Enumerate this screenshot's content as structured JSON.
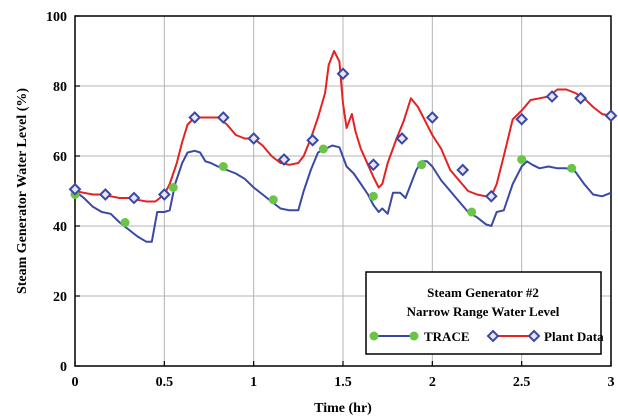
{
  "chart_data": {
    "type": "line",
    "title": "",
    "xlabel": "Time (hr)",
    "ylabel": "Steam Generator Water Level (%)",
    "xlim": [
      0,
      3
    ],
    "ylim": [
      0,
      100
    ],
    "xticks": [
      0,
      0.5,
      1,
      1.5,
      2,
      2.5,
      3
    ],
    "xtick_labels": [
      "0",
      "0.5",
      "1",
      "1.5",
      "2",
      "2.5",
      "3"
    ],
    "yticks": [
      0,
      20,
      40,
      60,
      80,
      100
    ],
    "ytick_labels": [
      "0",
      "20",
      "40",
      "60",
      "80",
      "100"
    ],
    "grid": true,
    "legend": {
      "position": "bottom-right",
      "title_lines": [
        "Steam Generator #2",
        "Narrow Range Water Level"
      ]
    },
    "series": [
      {
        "name": "TRACE",
        "line_color": "#3a4aa3",
        "marker_color": "#6ac545",
        "marker": "circle",
        "x": [
          0,
          0.05,
          0.1,
          0.15,
          0.2,
          0.25,
          0.3,
          0.35,
          0.4,
          0.43,
          0.46,
          0.5,
          0.53,
          0.56,
          0.6,
          0.63,
          0.67,
          0.7,
          0.73,
          0.76,
          0.8,
          0.85,
          0.9,
          0.95,
          1.0,
          1.05,
          1.1,
          1.15,
          1.2,
          1.25,
          1.28,
          1.32,
          1.36,
          1.4,
          1.44,
          1.48,
          1.52,
          1.56,
          1.6,
          1.64,
          1.67,
          1.7,
          1.72,
          1.75,
          1.78,
          1.82,
          1.85,
          1.88,
          1.91,
          1.94,
          1.97,
          2.0,
          2.05,
          2.1,
          2.15,
          2.2,
          2.25,
          2.3,
          2.33,
          2.36,
          2.4,
          2.45,
          2.48,
          2.5,
          2.53,
          2.56,
          2.6,
          2.65,
          2.7,
          2.75,
          2.8,
          2.85,
          2.9,
          2.95,
          3.0
        ],
        "y": [
          50,
          48,
          45.5,
          44,
          43.5,
          41,
          39,
          37,
          35.5,
          35.5,
          44,
          44,
          44.5,
          52,
          58,
          61,
          61.5,
          61,
          58.5,
          58,
          57,
          56,
          55,
          53.5,
          51,
          49,
          47,
          45,
          44.5,
          44.5,
          50,
          56,
          61,
          62,
          63,
          62.5,
          57,
          55,
          52,
          49,
          46,
          44,
          45,
          43.5,
          49.5,
          49.5,
          48,
          52,
          56,
          58.5,
          58.5,
          57,
          53,
          50,
          47,
          44,
          42.5,
          40.5,
          40,
          44,
          44.5,
          52,
          55,
          57,
          58.5,
          57.5,
          56.5,
          57,
          56.5,
          56.5,
          55.5,
          52,
          49,
          48.5,
          49.5
        ]
      },
      {
        "name": "Plant Data",
        "line_color": "#e52222",
        "marker_color": "#3a4aa3",
        "marker_fill": "#e8e4f4",
        "marker": "diamond",
        "x": [
          0,
          0.05,
          0.1,
          0.15,
          0.2,
          0.25,
          0.3,
          0.35,
          0.4,
          0.45,
          0.5,
          0.53,
          0.57,
          0.6,
          0.63,
          0.67,
          0.7,
          0.75,
          0.8,
          0.85,
          0.9,
          0.95,
          1.0,
          1.05,
          1.1,
          1.15,
          1.2,
          1.25,
          1.28,
          1.32,
          1.36,
          1.4,
          1.42,
          1.45,
          1.48,
          1.5,
          1.52,
          1.55,
          1.57,
          1.6,
          1.64,
          1.67,
          1.7,
          1.72,
          1.75,
          1.8,
          1.84,
          1.88,
          1.92,
          1.95,
          2.0,
          2.05,
          2.1,
          2.15,
          2.2,
          2.25,
          2.3,
          2.33,
          2.36,
          2.4,
          2.45,
          2.5,
          2.55,
          2.6,
          2.65,
          2.7,
          2.75,
          2.8,
          2.85,
          2.9,
          2.95,
          3.0
        ],
        "y": [
          50,
          49.5,
          49,
          49,
          48.5,
          48,
          48,
          47.5,
          47,
          47,
          49,
          52,
          58,
          64,
          69,
          71,
          71,
          71,
          71,
          69,
          66,
          65,
          65,
          63,
          60,
          58,
          57.5,
          58,
          60,
          65,
          71,
          78,
          86,
          90,
          87,
          75,
          68,
          72,
          67,
          62,
          57.5,
          54,
          51,
          52,
          58,
          65,
          70,
          76.5,
          74,
          71,
          66,
          62,
          56,
          53,
          50,
          49,
          48.5,
          48.5,
          52,
          60,
          70.5,
          73,
          76,
          76.5,
          77,
          79,
          79,
          78,
          76.5,
          74,
          72,
          71.5
        ]
      }
    ],
    "trace_markers": {
      "x": [
        0,
        0.28,
        0.55,
        0.83,
        1.11,
        1.39,
        1.67,
        1.94,
        2.22,
        2.5,
        2.78
      ],
      "y": [
        49,
        41,
        51,
        57,
        47.5,
        62,
        48.5,
        57.5,
        44,
        59,
        56.5
      ]
    },
    "plant_markers": {
      "x": [
        0,
        0.17,
        0.33,
        0.5,
        0.67,
        0.83,
        1.0,
        1.17,
        1.33,
        1.5,
        1.67,
        1.83,
        2.0,
        2.17,
        2.33,
        2.5,
        2.67,
        2.83,
        3.0
      ],
      "y": [
        50.5,
        49,
        48,
        49,
        71,
        71,
        65,
        59,
        64.5,
        83.5,
        57.5,
        65,
        71,
        56,
        48.5,
        70.5,
        77,
        76.5,
        71.5
      ]
    },
    "colors": {
      "grid": "#b4b4b4",
      "axis": "#000000"
    }
  }
}
